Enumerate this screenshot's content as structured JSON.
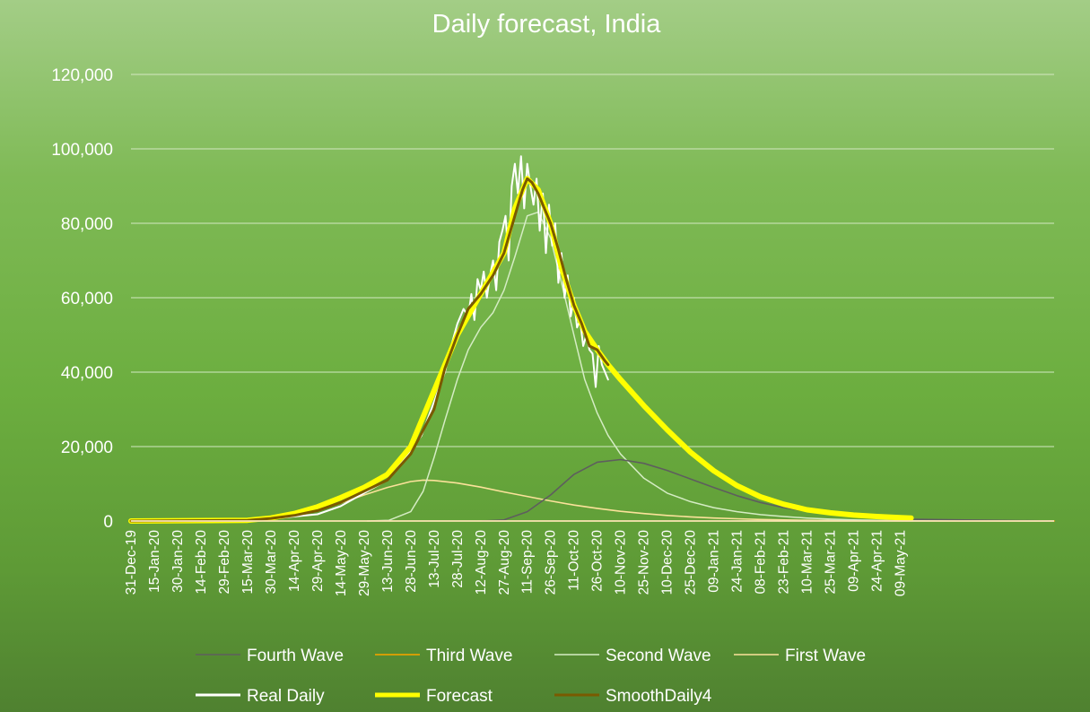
{
  "chart_data": {
    "type": "line",
    "title": "Daily forecast, India",
    "xlabel": "",
    "ylabel": "",
    "ylim": [
      0,
      120000
    ],
    "yticks": [
      "0",
      "20,000",
      "40,000",
      "60,000",
      "80,000",
      "100,000",
      "120,000"
    ],
    "ytick_values": [
      0,
      20000,
      40000,
      60000,
      80000,
      100000,
      120000
    ],
    "xlim": [
      "31-Dec-19",
      "16-Aug-21"
    ],
    "xticks": [
      "31-Dec-19",
      "15-Jan-20",
      "30-Jan-20",
      "14-Feb-20",
      "29-Feb-20",
      "15-Mar-20",
      "30-Mar-20",
      "14-Apr-20",
      "29-Apr-20",
      "14-May-20",
      "29-May-20",
      "13-Jun-20",
      "28-Jun-20",
      "13-Jul-20",
      "28-Jul-20",
      "12-Aug-20",
      "27-Aug-20",
      "11-Sep-20",
      "26-Sep-20",
      "11-Oct-20",
      "26-Oct-20",
      "10-Nov-20",
      "25-Nov-20",
      "10-Dec-20",
      "25-Dec-20",
      "09-Jan-21",
      "24-Jan-21",
      "08-Feb-21",
      "23-Feb-21",
      "10-Mar-21",
      "25-Mar-21",
      "09-Apr-21",
      "24-Apr-21",
      "09-May-21"
    ],
    "grid": true,
    "legend_position": "bottom",
    "colors": {
      "fourth_wave": "#5e5e5e",
      "third_wave": "#e5a100",
      "second_wave": "#d5ecc4",
      "first_wave": "#fbe29a",
      "real_daily": "#ffffff",
      "forecast": "#ffff00",
      "smooth_daily": "#7a5a00",
      "grid": "#d3e8c2",
      "axis": "#ffffff"
    },
    "series": [
      {
        "name": "Fourth Wave",
        "key": "fourth_wave",
        "x": [
          "13-Aug-20",
          "27-Aug-20",
          "11-Sep-20",
          "26-Sep-20",
          "11-Oct-20",
          "26-Oct-20",
          "10-Nov-20",
          "25-Nov-20",
          "10-Dec-20",
          "25-Dec-20",
          "09-Jan-21",
          "24-Jan-21",
          "08-Feb-21",
          "23-Feb-21",
          "10-Mar-21",
          "25-Mar-21",
          "09-Apr-21",
          "24-Apr-21",
          "09-May-21",
          "16-Aug-21"
        ],
        "values": [
          0,
          300,
          2500,
          7000,
          12500,
          15800,
          16500,
          15500,
          13600,
          11300,
          9000,
          6800,
          5000,
          3600,
          2600,
          1800,
          1200,
          800,
          500,
          0
        ]
      },
      {
        "name": "Third Wave",
        "key": "third_wave",
        "x": [
          "31-Dec-19",
          "16-Aug-21"
        ],
        "values": [
          0,
          0
        ]
      },
      {
        "name": "Second Wave",
        "key": "second_wave",
        "x": [
          "31-May-20",
          "14-Jun-20",
          "28-Jun-20",
          "06-Jul-20",
          "13-Jul-20",
          "20-Jul-20",
          "28-Jul-20",
          "04-Aug-20",
          "12-Aug-20",
          "20-Aug-20",
          "27-Aug-20",
          "03-Sep-20",
          "11-Sep-20",
          "18-Sep-20",
          "26-Sep-20",
          "03-Oct-20",
          "11-Oct-20",
          "18-Oct-20",
          "26-Oct-20",
          "02-Nov-20",
          "10-Nov-20",
          "25-Nov-20",
          "10-Dec-20",
          "25-Dec-20",
          "09-Jan-21",
          "24-Jan-21",
          "08-Feb-21",
          "23-Feb-21",
          "10-Mar-21",
          "25-Mar-21",
          "09-Apr-21",
          "24-Apr-21",
          "09-May-21",
          "16-Aug-21"
        ],
        "values": [
          0,
          200,
          2500,
          8000,
          17000,
          27000,
          38000,
          46000,
          52000,
          56000,
          62000,
          71000,
          82000,
          83000,
          76000,
          64000,
          50000,
          38000,
          29000,
          23000,
          18000,
          11500,
          7500,
          5200,
          3600,
          2500,
          1700,
          1200,
          800,
          500,
          300,
          200,
          100,
          0
        ]
      },
      {
        "name": "First Wave",
        "key": "first_wave",
        "x": [
          "31-Dec-19",
          "30-Mar-20",
          "14-Apr-20",
          "29-Apr-20",
          "14-May-20",
          "29-May-20",
          "13-Jun-20",
          "28-Jun-20",
          "06-Jul-20",
          "13-Jul-20",
          "28-Jul-20",
          "12-Aug-20",
          "27-Aug-20",
          "11-Sep-20",
          "26-Sep-20",
          "11-Oct-20",
          "26-Oct-20",
          "10-Nov-20",
          "25-Nov-20",
          "10-Dec-20",
          "25-Dec-20",
          "09-Jan-21",
          "24-Jan-21",
          "08-Feb-21",
          "23-Feb-21",
          "10-Mar-21",
          "25-Mar-21",
          "09-Apr-21",
          "24-Apr-21",
          "09-May-21",
          "16-Aug-21"
        ],
        "values": [
          0,
          400,
          1200,
          2800,
          4800,
          7000,
          9000,
          10600,
          11000,
          10900,
          10200,
          9100,
          7800,
          6600,
          5400,
          4300,
          3400,
          2600,
          2000,
          1500,
          1100,
          800,
          600,
          400,
          300,
          200,
          150,
          100,
          80,
          50,
          0
        ]
      },
      {
        "name": "Real Daily",
        "key": "real_daily",
        "x": [
          "31-Dec-19",
          "15-Mar-20",
          "30-Mar-20",
          "14-Apr-20",
          "29-Apr-20",
          "14-May-20",
          "29-May-20",
          "13-Jun-20",
          "28-Jun-20",
          "05-Jul-20",
          "13-Jul-20",
          "20-Jul-20",
          "24-Jul-20",
          "28-Jul-20",
          "01-Aug-20",
          "04-Aug-20",
          "06-Aug-20",
          "08-Aug-20",
          "10-Aug-20",
          "12-Aug-20",
          "14-Aug-20",
          "16-Aug-20",
          "18-Aug-20",
          "20-Aug-20",
          "22-Aug-20",
          "24-Aug-20",
          "26-Aug-20",
          "28-Aug-20",
          "30-Aug-20",
          "01-Sep-20",
          "03-Sep-20",
          "05-Sep-20",
          "07-Sep-20",
          "09-Sep-20",
          "11-Sep-20",
          "13-Sep-20",
          "15-Sep-20",
          "17-Sep-20",
          "19-Sep-20",
          "21-Sep-20",
          "23-Sep-20",
          "25-Sep-20",
          "27-Sep-20",
          "29-Sep-20",
          "01-Oct-20",
          "03-Oct-20",
          "05-Oct-20",
          "07-Oct-20",
          "09-Oct-20",
          "11-Oct-20",
          "13-Oct-20",
          "15-Oct-20",
          "17-Oct-20",
          "19-Oct-20",
          "21-Oct-20",
          "23-Oct-20",
          "25-Oct-20",
          "27-Oct-20",
          "29-Oct-20",
          "31-Oct-20",
          "02-Nov-20"
        ],
        "values": [
          0,
          100,
          800,
          1200,
          1800,
          4000,
          7500,
          11000,
          19000,
          23000,
          32000,
          40000,
          47000,
          53000,
          57000,
          55000,
          61000,
          54000,
          65000,
          62000,
          67000,
          60000,
          66000,
          70000,
          62000,
          75000,
          78000,
          82000,
          70000,
          90000,
          96000,
          88000,
          98000,
          84000,
          96000,
          90000,
          85000,
          92000,
          78000,
          88000,
          72000,
          85000,
          74000,
          80000,
          64000,
          72000,
          60000,
          66000,
          55000,
          60000,
          52000,
          54000,
          47000,
          50000,
          46000,
          45000,
          36000,
          47000,
          42000,
          40000,
          38000
        ]
      },
      {
        "name": "Forecast",
        "key": "forecast",
        "x": [
          "31-Dec-19",
          "15-Mar-20",
          "30-Mar-20",
          "14-Apr-20",
          "29-Apr-20",
          "14-May-20",
          "29-May-20",
          "13-Jun-20",
          "28-Jun-20",
          "13-Jul-20",
          "28-Jul-20",
          "12-Aug-20",
          "27-Aug-20",
          "03-Sep-20",
          "11-Sep-20",
          "18-Sep-20",
          "26-Sep-20",
          "03-Oct-20",
          "11-Oct-20",
          "18-Oct-20",
          "26-Oct-20",
          "02-Nov-20",
          "10-Nov-20",
          "25-Nov-20",
          "10-Dec-20",
          "25-Dec-20",
          "09-Jan-21",
          "24-Jan-21",
          "08-Feb-21",
          "23-Feb-21",
          "10-Mar-21",
          "25-Mar-21",
          "09-Apr-21",
          "24-Apr-21",
          "09-May-21",
          "16-May-21"
        ],
        "values": [
          0,
          200,
          800,
          2000,
          3800,
          6300,
          9000,
          12500,
          20000,
          35000,
          50000,
          61000,
          72000,
          84000,
          92000,
          89000,
          80000,
          68000,
          58000,
          51000,
          46000,
          42000,
          38000,
          31000,
          24500,
          18500,
          13500,
          9500,
          6500,
          4500,
          3000,
          2200,
          1600,
          1200,
          900,
          800
        ]
      },
      {
        "name": "SmoothDaily4",
        "key": "smooth_daily",
        "x": [
          "31-Dec-19",
          "15-Mar-20",
          "30-Mar-20",
          "14-Apr-20",
          "29-Apr-20",
          "14-May-20",
          "29-May-20",
          "13-Jun-20",
          "28-Jun-20",
          "13-Jul-20",
          "20-Jul-20",
          "28-Jul-20",
          "04-Aug-20",
          "12-Aug-20",
          "20-Aug-20",
          "27-Aug-20",
          "03-Sep-20",
          "08-Sep-20",
          "11-Sep-20",
          "14-Sep-20",
          "18-Sep-20",
          "22-Sep-20",
          "26-Sep-20",
          "01-Oct-20",
          "06-Oct-20",
          "11-Oct-20",
          "16-Oct-20",
          "21-Oct-20",
          "26-Oct-20",
          "31-Oct-20",
          "02-Nov-20"
        ],
        "values": [
          0,
          200,
          700,
          1500,
          2800,
          5000,
          8000,
          11000,
          18000,
          30000,
          41000,
          50000,
          57000,
          61000,
          66000,
          72000,
          82000,
          89000,
          92000,
          91000,
          88000,
          84000,
          80000,
          73000,
          65000,
          58000,
          53000,
          47000,
          46000,
          43000,
          42000
        ]
      }
    ]
  }
}
